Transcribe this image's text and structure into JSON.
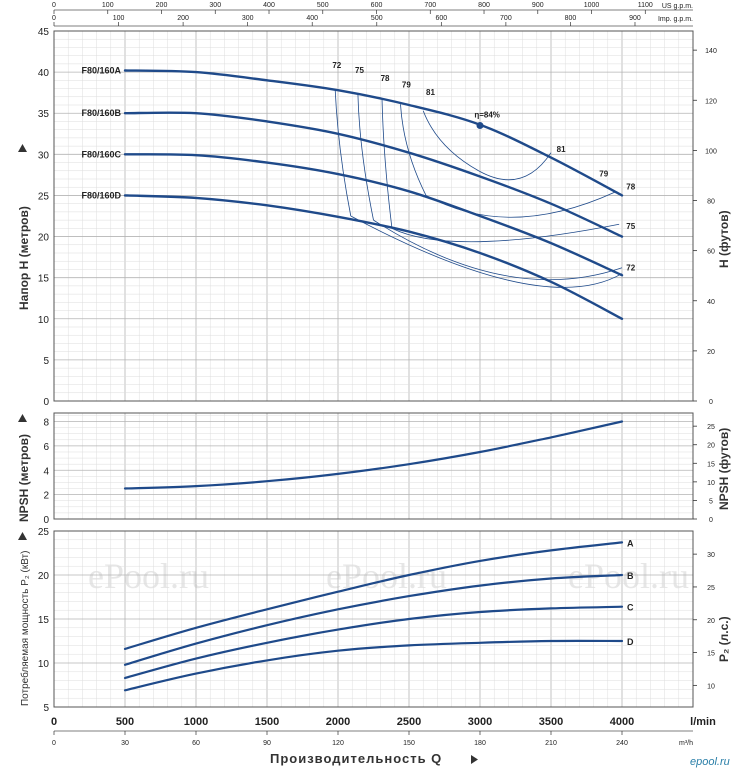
{
  "chart_data": [
    {
      "panel": "head",
      "type": "line",
      "ylabel_left": "Напор H   (метров)",
      "ylabel_right": "H   (футов)",
      "ylim": [
        0,
        45
      ],
      "yticks": [
        0,
        5,
        10,
        15,
        20,
        25,
        30,
        35,
        40,
        45
      ],
      "ylim_right": [
        0,
        147.6
      ],
      "yticks_right": [
        0,
        20,
        40,
        60,
        80,
        100,
        120,
        140
      ],
      "xlim": [
        0,
        4500
      ],
      "series": [
        {
          "name": "F80/160A",
          "x": [
            500,
            1000,
            1500,
            2000,
            2500,
            3000,
            3500,
            4000
          ],
          "y": [
            40.2,
            40.0,
            39.0,
            37.8,
            36.0,
            33.6,
            29.6,
            25.0
          ]
        },
        {
          "name": "F80/160B",
          "x": [
            500,
            1000,
            1500,
            2000,
            2500,
            3000,
            3500,
            4000
          ],
          "y": [
            35.0,
            35.0,
            34.0,
            32.5,
            30.2,
            27.3,
            24.0,
            20.0
          ]
        },
        {
          "name": "F80/160C",
          "x": [
            500,
            1000,
            1500,
            2000,
            2500,
            3000,
            3500,
            4000
          ],
          "y": [
            30.0,
            29.9,
            29.0,
            27.6,
            25.5,
            22.5,
            19.2,
            15.3
          ]
        },
        {
          "name": "F80/160D",
          "x": [
            500,
            1000,
            1500,
            2000,
            2500,
            3000,
            3500,
            4000
          ],
          "y": [
            25.0,
            24.7,
            23.8,
            22.4,
            20.6,
            18.0,
            14.5,
            10.0
          ]
        }
      ],
      "efficiency_labels": [
        "72",
        "75",
        "78",
        "79",
        "81",
        "η=84%",
        "81",
        "79",
        "78",
        "75",
        "72"
      ],
      "bep_point": {
        "x": 3000,
        "y": 33.5
      }
    },
    {
      "panel": "npsh",
      "type": "line",
      "ylabel_left": "NPSH   (метров)",
      "ylabel_right": "NPSH   (футов)",
      "ylim": [
        0,
        8.7
      ],
      "yticks": [
        0,
        2,
        4,
        6,
        8
      ],
      "yticks_right": [
        0,
        5,
        10,
        15,
        20,
        25
      ],
      "series": [
        {
          "name": "",
          "x": [
            500,
            1000,
            1500,
            2000,
            2500,
            3000,
            3500,
            4000
          ],
          "y": [
            2.5,
            2.7,
            3.1,
            3.7,
            4.5,
            5.5,
            6.7,
            8.0
          ]
        }
      ]
    },
    {
      "panel": "power",
      "type": "line",
      "ylabel_left": "Потребляемая мощность  P₂ (кВт)",
      "ylabel_right": "P₂   (л.с.)",
      "ylim": [
        5,
        25
      ],
      "yticks": [
        5,
        10,
        15,
        20,
        25
      ],
      "yticks_right": [
        10,
        15,
        20,
        25,
        30
      ],
      "series": [
        {
          "name": "A",
          "x": [
            500,
            1000,
            1500,
            2000,
            2500,
            3000,
            3500,
            4000
          ],
          "y": [
            11.6,
            14.0,
            16.1,
            18.1,
            20.0,
            21.6,
            22.8,
            23.7
          ]
        },
        {
          "name": "B",
          "x": [
            500,
            1000,
            1500,
            2000,
            2500,
            3000,
            3500,
            4000
          ],
          "y": [
            9.8,
            12.2,
            14.3,
            16.1,
            17.6,
            18.8,
            19.6,
            20.0
          ]
        },
        {
          "name": "C",
          "x": [
            500,
            1000,
            1500,
            2000,
            2500,
            3000,
            3500,
            4000
          ],
          "y": [
            8.3,
            10.5,
            12.3,
            13.8,
            15.0,
            15.8,
            16.2,
            16.4
          ]
        },
        {
          "name": "D",
          "x": [
            500,
            1000,
            1500,
            2000,
            2500,
            3000,
            3500,
            4000
          ],
          "y": [
            6.9,
            8.8,
            10.3,
            11.4,
            12.0,
            12.3,
            12.5,
            12.5
          ]
        }
      ]
    }
  ],
  "x_axes": {
    "lmin_ticks": [
      0,
      500,
      1000,
      1500,
      2000,
      2500,
      3000,
      3500,
      4000
    ],
    "lmin_unit": "l/min",
    "m3h_ticks": [
      0,
      30,
      60,
      90,
      120,
      150,
      180,
      210,
      240
    ],
    "m3h_unit": "m³/h",
    "us_ticks": [
      0,
      100,
      200,
      300,
      400,
      500,
      600,
      700,
      800,
      900,
      1000,
      1100
    ],
    "us_unit": "US g.p.m.",
    "imp_ticks": [
      0,
      100,
      200,
      300,
      400,
      500,
      600,
      700,
      800,
      900
    ],
    "imp_unit": "Imp. g.p.m.",
    "title": "Производительность Q"
  },
  "watermark": [
    "ePool.ru",
    "ePool.ru",
    "ePool.ru"
  ],
  "logo": "epool.ru",
  "colors": {
    "curve": "#1f4a8a",
    "grid": "#c8c8c8",
    "frame": "#555555"
  }
}
